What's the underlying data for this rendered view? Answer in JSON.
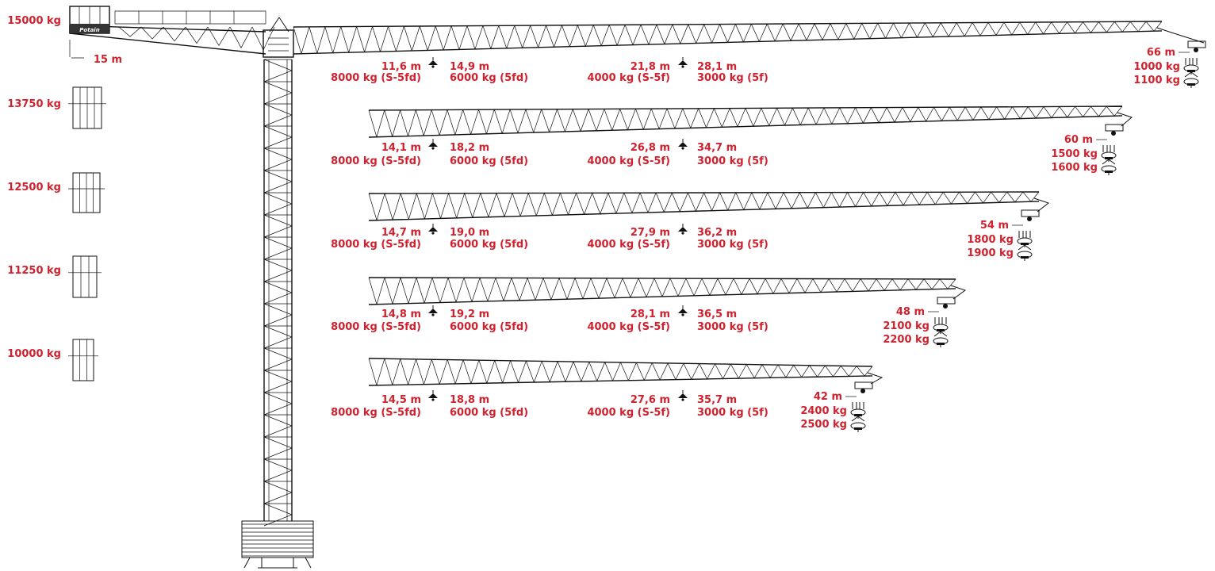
{
  "brand_text": "Potain",
  "colors": {
    "label": "#d0212e",
    "line": "#111111",
    "background": "#ffffff"
  },
  "counterweights": [
    {
      "weight": "15000 kg"
    },
    {
      "weight": "13750 kg"
    },
    {
      "weight": "12500 kg"
    },
    {
      "weight": "11250 kg"
    },
    {
      "weight": "10000 kg"
    }
  ],
  "counter_jib_length": "15 m",
  "jibs": [
    {
      "length": "66 m",
      "tip_loads": [
        "1000 kg",
        "1100 kg"
      ],
      "points": [
        {
          "radius": "11,6 m",
          "load": "8000 kg (S-5fd)"
        },
        {
          "radius": "14,9 m",
          "load": "6000 kg (5fd)"
        },
        {
          "radius": "21,8 m",
          "load": "4000 kg (S-5f)"
        },
        {
          "radius": "28,1 m",
          "load": "3000 kg (5f)"
        }
      ]
    },
    {
      "length": "60 m",
      "tip_loads": [
        "1500 kg",
        "1600 kg"
      ],
      "points": [
        {
          "radius": "14,1 m",
          "load": "8000 kg (S-5fd)"
        },
        {
          "radius": "18,2 m",
          "load": "6000 kg (5fd)"
        },
        {
          "radius": "26,8 m",
          "load": "4000 kg (S-5f)"
        },
        {
          "radius": "34,7 m",
          "load": "3000 kg (5f)"
        }
      ]
    },
    {
      "length": "54 m",
      "tip_loads": [
        "1800 kg",
        "1900 kg"
      ],
      "points": [
        {
          "radius": "14,7 m",
          "load": "8000 kg (S-5fd)"
        },
        {
          "radius": "19,0 m",
          "load": "6000 kg (5fd)"
        },
        {
          "radius": "27,9 m",
          "load": "4000 kg (S-5f)"
        },
        {
          "radius": "36,2 m",
          "load": "3000 kg (5f)"
        }
      ]
    },
    {
      "length": "48 m",
      "tip_loads": [
        "2100 kg",
        "2200 kg"
      ],
      "points": [
        {
          "radius": "14,8 m",
          "load": "8000 kg (S-5fd)"
        },
        {
          "radius": "19,2 m",
          "load": "6000 kg (5fd)"
        },
        {
          "radius": "28,1 m",
          "load": "4000 kg (S-5f)"
        },
        {
          "radius": "36,5 m",
          "load": "3000 kg (5f)"
        }
      ]
    },
    {
      "length": "42 m",
      "tip_loads": [
        "2400 kg",
        "2500 kg"
      ],
      "points": [
        {
          "radius": "14,5 m",
          "load": "8000 kg (S-5fd)"
        },
        {
          "radius": "18,8 m",
          "load": "6000 kg (5fd)"
        },
        {
          "radius": "27,6 m",
          "load": "4000 kg (S-5f)"
        },
        {
          "radius": "35,7 m",
          "load": "3000 kg (5f)"
        }
      ]
    }
  ]
}
